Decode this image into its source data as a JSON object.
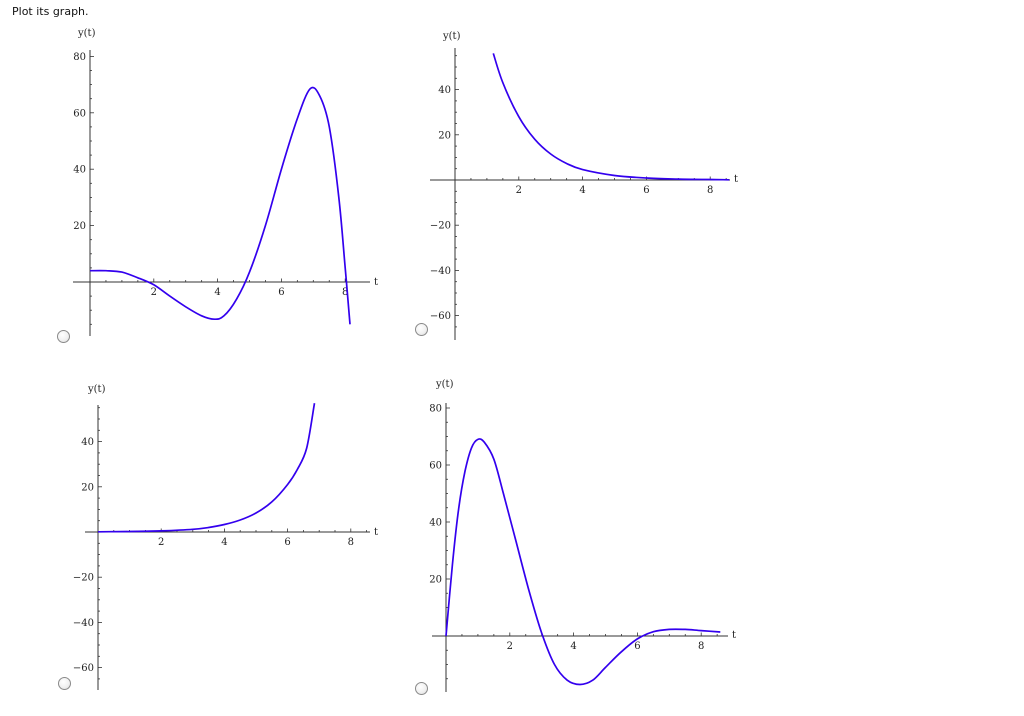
{
  "question": {
    "prompt": "Plot its graph."
  },
  "chart_data": [
    {
      "id": "A",
      "type": "line",
      "xlabel": "t",
      "ylabel": "y(t)",
      "xticks": [
        2,
        4,
        6,
        8
      ],
      "yticks": [
        20,
        40,
        60,
        80
      ],
      "xlim": [
        0,
        8.2
      ],
      "ylim": [
        -20,
        80
      ],
      "color": "#3300ee",
      "series": [
        {
          "x": [
            0,
            0.5,
            1,
            1.5,
            2,
            2.5,
            3,
            3.5,
            3.9,
            4.2,
            4.6,
            5,
            5.5,
            6,
            6.5,
            6.9,
            7.2,
            7.5,
            7.8,
            8.0,
            8.15
          ],
          "y": [
            4,
            4,
            3.5,
            1.5,
            -1,
            -5,
            -8.8,
            -12,
            -13.2,
            -12,
            -6,
            3.5,
            20,
            40,
            58,
            68.5,
            66,
            55,
            30,
            5,
            -15
          ]
        }
      ]
    },
    {
      "id": "B",
      "type": "line",
      "xlabel": "t",
      "ylabel": "y(t)",
      "xticks": [
        2,
        4,
        6,
        8
      ],
      "yticks": [
        40,
        20,
        -20,
        -40,
        -60
      ],
      "xlim": [
        0,
        8.8
      ],
      "ylim": [
        -65,
        55
      ],
      "color": "#3300ee",
      "series": [
        {
          "x": [
            1.2,
            1.5,
            2,
            2.5,
            3,
            3.5,
            4,
            5,
            6,
            7,
            8,
            8.6
          ],
          "y": [
            56,
            43,
            28,
            18,
            11.5,
            7.3,
            4.6,
            2,
            0.9,
            0.4,
            0.2,
            0.1
          ]
        }
      ]
    },
    {
      "id": "C",
      "type": "line",
      "xlabel": "t",
      "ylabel": "y(t)",
      "xticks": [
        2,
        4,
        6,
        8
      ],
      "yticks": [
        40,
        20,
        -20,
        -40,
        -60
      ],
      "xlim": [
        0,
        8.8
      ],
      "ylim": [
        -65,
        55
      ],
      "color": "#3300ee",
      "series": [
        {
          "x": [
            0,
            1,
            2,
            3,
            3.5,
            4,
            4.5,
            5,
            5.5,
            6,
            6.3,
            6.6,
            6.85
          ],
          "y": [
            0.1,
            0.2,
            0.5,
            1.2,
            2,
            3.3,
            5.3,
            8.4,
            13.3,
            21,
            27.5,
            37,
            57
          ]
        }
      ]
    },
    {
      "id": "D",
      "type": "line",
      "xlabel": "t",
      "ylabel": "y(t)",
      "xticks": [
        2,
        4,
        6,
        8
      ],
      "yticks": [
        20,
        40,
        60,
        80
      ],
      "xlim": [
        0,
        8.6
      ],
      "ylim": [
        -20,
        80
      ],
      "color": "#3300ee",
      "series": [
        {
          "x": [
            0,
            0.2,
            0.4,
            0.6,
            0.8,
            1.0,
            1.2,
            1.5,
            1.8,
            2.2,
            2.6,
            3.0,
            3.4,
            3.8,
            4.2,
            4.6,
            5,
            5.5,
            6,
            6.5,
            7,
            7.5,
            8,
            8.6
          ],
          "y": [
            0,
            25,
            45,
            58,
            66,
            69,
            68,
            62,
            50,
            33,
            16,
            1,
            -10,
            -15.5,
            -17,
            -15.5,
            -11,
            -5.5,
            -1,
            1.5,
            2.3,
            2.3,
            1.9,
            1.4
          ]
        }
      ]
    }
  ]
}
